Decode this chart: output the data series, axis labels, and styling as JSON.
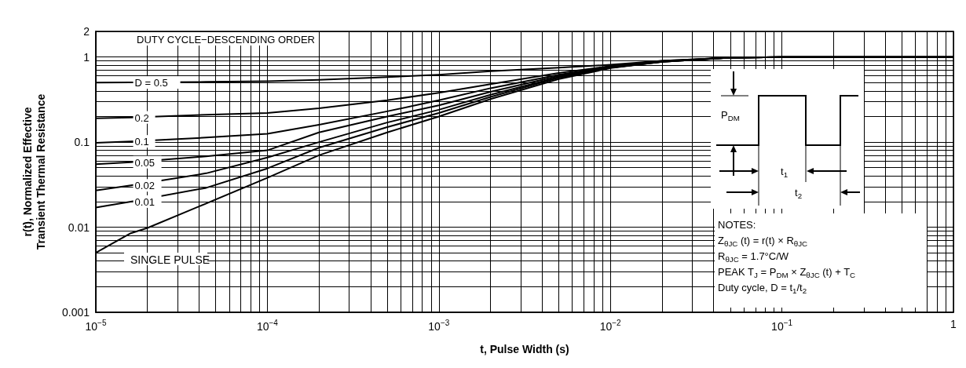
{
  "chart_data": {
    "type": "line",
    "xlabel": "t, Pulse Width (s)",
    "ylabel": "r(t), Normalized Effective\nTransient Thermal Resistance",
    "x": [
      1e-05,
      1.6e-05,
      2e-05,
      4.4e-05,
      0.0001,
      0.0002,
      0.0005,
      0.001,
      0.002,
      0.005,
      0.01,
      0.02,
      0.05,
      0.1,
      1
    ],
    "series": [
      {
        "name": "D = 0.5",
        "color": "#000000",
        "x": [
          1e-05,
          1.6e-05,
          4.4e-05,
          0.0001,
          0.0002,
          0.0005,
          0.001,
          0.002,
          0.005,
          0.01,
          0.02,
          0.05,
          0.1,
          1
        ],
        "values": [
          0.5,
          0.502,
          0.51,
          0.52,
          0.54,
          0.58,
          0.62,
          0.68,
          0.75,
          0.81,
          0.9,
          0.98,
          1,
          1
        ]
      },
      {
        "name": "0.2",
        "color": "#000000",
        "x": [
          1e-05,
          1.6e-05,
          4.4e-05,
          0.0001,
          0.0002,
          0.0005,
          0.001,
          0.002,
          0.005,
          0.01,
          0.02,
          0.05,
          0.1,
          1
        ],
        "values": [
          0.19,
          0.195,
          0.21,
          0.22,
          0.25,
          0.31,
          0.38,
          0.48,
          0.65,
          0.78,
          0.9,
          0.98,
          1,
          1
        ]
      },
      {
        "name": "0.1",
        "color": "#000000",
        "x": [
          1e-05,
          1.6e-05,
          4.4e-05,
          0.0001,
          0.0002,
          0.0005,
          0.001,
          0.002,
          0.005,
          0.01,
          0.02,
          0.05,
          0.1,
          1
        ],
        "values": [
          0.098,
          0.102,
          0.113,
          0.125,
          0.16,
          0.23,
          0.31,
          0.43,
          0.62,
          0.77,
          0.89,
          0.98,
          1,
          1
        ]
      },
      {
        "name": "0.05",
        "color": "#000000",
        "x": [
          1e-05,
          1.6e-05,
          4.4e-05,
          0.0001,
          0.0002,
          0.0005,
          0.001,
          0.002,
          0.005,
          0.01,
          0.02,
          0.05,
          0.1,
          1
        ],
        "values": [
          0.055,
          0.058,
          0.068,
          0.08,
          0.13,
          0.2,
          0.27,
          0.39,
          0.6,
          0.76,
          0.89,
          0.98,
          1,
          1
        ]
      },
      {
        "name": "0.02",
        "color": "#000000",
        "x": [
          1e-05,
          1.6e-05,
          4.4e-05,
          0.0001,
          0.0002,
          0.0005,
          0.001,
          0.002,
          0.005,
          0.01,
          0.02,
          0.05,
          0.1,
          1
        ],
        "values": [
          0.027,
          0.031,
          0.043,
          0.066,
          0.1,
          0.17,
          0.24,
          0.36,
          0.58,
          0.75,
          0.88,
          0.98,
          1,
          1
        ]
      },
      {
        "name": "0.01",
        "color": "#000000",
        "x": [
          1e-05,
          1.6e-05,
          4.4e-05,
          0.0001,
          0.0002,
          0.0005,
          0.001,
          0.002,
          0.005,
          0.01,
          0.02,
          0.05,
          0.1,
          1
        ],
        "values": [
          0.017,
          0.02,
          0.029,
          0.049,
          0.086,
          0.15,
          0.22,
          0.34,
          0.57,
          0.75,
          0.88,
          0.98,
          1,
          1
        ]
      },
      {
        "name": "SINGLE PULSE",
        "color": "#000000",
        "values": [
          0.005,
          0.0085,
          0.0098,
          0.019,
          0.038,
          0.07,
          0.13,
          0.2,
          0.32,
          0.55,
          0.74,
          0.88,
          0.98,
          1,
          1
        ]
      }
    ],
    "log": "xy",
    "grid": true,
    "legend": false,
    "xlim": [
      1e-05,
      1
    ],
    "ylim": [
      0.001,
      2
    ],
    "xticks": [
      {
        "value": 1e-05,
        "label": "10$^{−5}$"
      },
      {
        "value": 0.0001,
        "label": "10$^{−4}$"
      },
      {
        "value": 0.001,
        "label": "10$^{−3}$"
      },
      {
        "value": 0.01,
        "label": "10$^{−2}$"
      },
      {
        "value": 0.1,
        "label": "10$^{−1}$"
      },
      1
    ],
    "yticks": [
      0.001,
      0.01,
      0.1,
      1,
      2
    ],
    "annotations": [
      "DUTY CYCLE−DESCENDING ORDER",
      "P$_{DM}$",
      "t$_{1}$",
      "t$_{2}$",
      "NOTES:",
      "Z$_{θJC}$ (t) = r(t) × R$_{θJC}$",
      "R$_{θJC}$ = 1.7°C/W",
      "PEAK T$_{J}$ = P$_{DM}$ × Z$_{θJC}$ (t) + T$_{C}$",
      "Duty cycle, D = t$_{1}$/t$_{2}$"
    ]
  }
}
